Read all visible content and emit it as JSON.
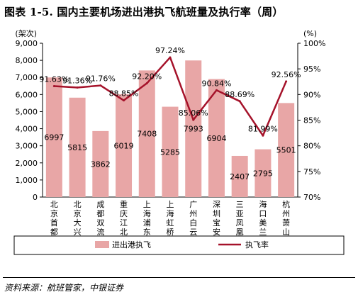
{
  "title": "图表 1-5. 国内主要机场进出港执飞航班量及执行率（周）",
  "source": "资料来源：航班管家，中银证券",
  "chart_data": {
    "type": "bar+line",
    "categories": [
      "北京首都",
      "北京大兴",
      "成都双流",
      "重庆江北",
      "上海浦东",
      "上海虹桥",
      "广州白云",
      "深圳宝安",
      "三亚凤凰",
      "海口美兰",
      "杭州萧山"
    ],
    "series": [
      {
        "name": "进出港执飞",
        "type": "bar",
        "axis": "left",
        "color": "#e8a6a6",
        "values": [
          6997,
          5815,
          3862,
          6019,
          7408,
          5285,
          7993,
          6904,
          2407,
          2795,
          5501
        ],
        "labels": [
          "6997",
          "5815",
          "3862",
          "6019",
          "7408",
          "5285",
          "7993",
          "6904",
          "2407",
          "2795",
          "5501"
        ]
      },
      {
        "name": "执飞率",
        "type": "line",
        "axis": "right",
        "color": "#a5122a",
        "values": [
          91.63,
          91.36,
          91.76,
          88.85,
          92.2,
          97.24,
          85.06,
          90.84,
          88.69,
          81.99,
          92.56
        ],
        "labels": [
          "91.63%",
          "91.36%",
          "91.76%",
          "88.85%",
          "92.20%",
          "97.24%",
          "85.06%",
          "90.84%",
          "88.69%",
          "81.99%",
          "92.56%"
        ]
      }
    ],
    "yleft": {
      "label": "(架次)",
      "ylim": [
        0,
        9000
      ],
      "ticks": [
        0,
        1000,
        2000,
        3000,
        4000,
        5000,
        6000,
        7000,
        8000,
        9000
      ],
      "tick_labels": [
        "0",
        "1,000",
        "2,000",
        "3,000",
        "4,000",
        "5,000",
        "6,000",
        "7,000",
        "8,000",
        "9,000"
      ]
    },
    "yright": {
      "label": "(%)",
      "ylim": [
        70,
        100
      ],
      "ticks": [
        70,
        75,
        80,
        85,
        90,
        95,
        100
      ],
      "tick_labels": [
        "70%",
        "75%",
        "80%",
        "85%",
        "90%",
        "95%",
        "100%"
      ]
    },
    "grid": false,
    "legend_position": "bottom"
  }
}
